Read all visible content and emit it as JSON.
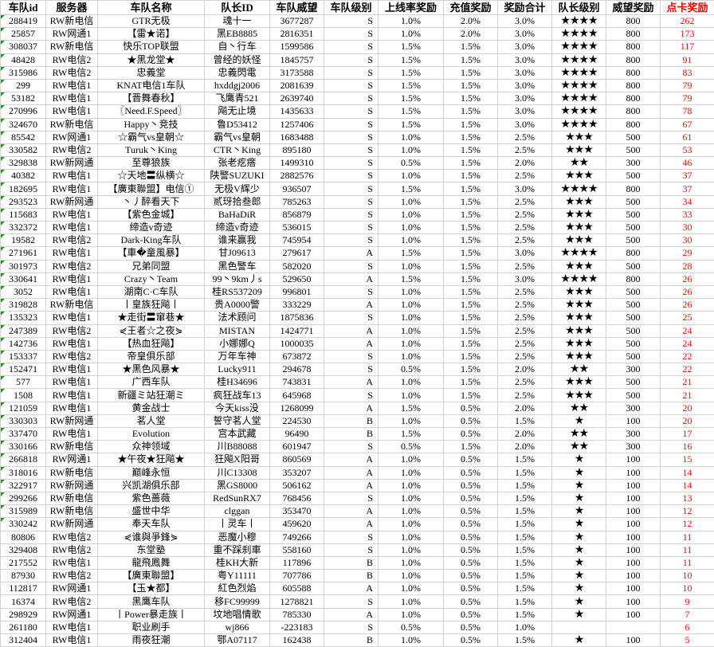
{
  "headers": [
    "车队id",
    "服务器",
    "车队名称",
    "队长ID",
    "车队威望",
    "车队级别",
    "上线率奖励",
    "充值奖励",
    "奖励合计",
    "队长级别",
    "威望奖励",
    "点卡奖励"
  ],
  "colors": {
    "highlight": "#ff0000",
    "comment_marker": "#1a9a1a",
    "grid": "#d4d4d4"
  },
  "star_icon": "★",
  "rows": [
    [
      "288419",
      "RW新电信",
      "GTR无极",
      "魂十一",
      "3677287",
      "S",
      "1.0%",
      "2.0%",
      "3.0%",
      4,
      "800",
      "262",
      true
    ],
    [
      "25857",
      "RW网通1",
      "【雷★诺】",
      "黑EB8885",
      "2816351",
      "S",
      "1.0%",
      "2.0%",
      "3.0%",
      4,
      "800",
      "173",
      true
    ],
    [
      "308037",
      "RW新电信",
      "快乐TOP联盟",
      "自丶行车",
      "1599586",
      "S",
      "1.5%",
      "1.5%",
      "3.0%",
      4,
      "800",
      "117",
      true
    ],
    [
      "48428",
      "RW电信2",
      "★黑龙堂★",
      "曾经的妖怪",
      "1845757",
      "S",
      "1.5%",
      "1.5%",
      "3.0%",
      4,
      "800",
      "91",
      true
    ],
    [
      "315986",
      "RW电信2",
      "忠義堂",
      "忠義閃電",
      "3173588",
      "S",
      "1.5%",
      "1.5%",
      "3.0%",
      4,
      "800",
      "83",
      true
    ],
    [
      "299",
      "RW电信1",
      "KNAT电信1车队",
      "hxddgj2006",
      "2081639",
      "S",
      "1.5%",
      "1.5%",
      "3.0%",
      4,
      "800",
      "79",
      true
    ],
    [
      "53182",
      "RW电信1",
      "【晋舞春秋】",
      "飞鹰青521",
      "2639740",
      "S",
      "1.5%",
      "1.5%",
      "3.0%",
      4,
      "800",
      "79",
      true
    ],
    [
      "270996",
      "RW电信1",
      "〖Need.F.Speed〗",
      "飚无止境",
      "1435633",
      "S",
      "1.5%",
      "1.5%",
      "3.0%",
      4,
      "800",
      "78",
      true
    ],
    [
      "324670",
      "RW新电信",
      "Happy丶竞技",
      "鲁D53412",
      "1257406",
      "S",
      "1.5%",
      "1.5%",
      "3.0%",
      4,
      "800",
      "67",
      true
    ],
    [
      "85542",
      "RW网通1",
      "☆霸气vs皇朝☆",
      "霸气vs皇朝",
      "1683488",
      "S",
      "1.0%",
      "1.5%",
      "2.5%",
      3,
      "500",
      "61",
      true
    ],
    [
      "330582",
      "RW电信2",
      "Turuk丶King",
      "CTR丶King",
      "895180",
      "S",
      "1.0%",
      "1.5%",
      "2.5%",
      3,
      "500",
      "53",
      true
    ],
    [
      "329838",
      "RW新网通",
      "至尊狼族",
      "张老疙瘩",
      "1499310",
      "S",
      "0.5%",
      "1.5%",
      "2.0%",
      2,
      "300",
      "46",
      true
    ],
    [
      "40382",
      "RW电信1",
      "☆天地〓纵横☆",
      "陕警SUZUKI",
      "2882576",
      "S",
      "1.0%",
      "1.5%",
      "2.5%",
      3,
      "500",
      "37",
      true
    ],
    [
      "182695",
      "RW电信1",
      "【廣東聯盟】电信①",
      "无极V辉少",
      "936507",
      "S",
      "1.5%",
      "1.5%",
      "3.0%",
      4,
      "800",
      "37",
      true
    ],
    [
      "293523",
      "RW新网通",
      "丶丿醉看天下",
      "贰玡拾叁郎",
      "785263",
      "S",
      "1.0%",
      "1.5%",
      "2.5%",
      3,
      "500",
      "34",
      true
    ],
    [
      "115683",
      "RW电信1",
      "【紫色金城】",
      "BaHaDiR",
      "856879",
      "S",
      "1.0%",
      "1.5%",
      "2.5%",
      3,
      "500",
      "33",
      true
    ],
    [
      "332372",
      "RW电信1",
      "缔造v奇迹",
      "缔造v奇迹",
      "536015",
      "S",
      "1.0%",
      "1.5%",
      "2.5%",
      3,
      "500",
      "30",
      true
    ],
    [
      "19582",
      "RW电信2",
      "Dark-King车队",
      "谁来赢我",
      "745954",
      "S",
      "1.0%",
      "1.5%",
      "2.5%",
      3,
      "500",
      "30",
      true
    ],
    [
      "271961",
      "RW电信1",
      "【車�童風暴】",
      "甘J09613",
      "279617",
      "A",
      "1.5%",
      "1.5%",
      "3.0%",
      4,
      "800",
      "29",
      true
    ],
    [
      "301973",
      "RW电信2",
      "兄弟同盟",
      "黑色警车",
      "582020",
      "S",
      "1.0%",
      "1.5%",
      "2.5%",
      3,
      "500",
      "28",
      true
    ],
    [
      "330641",
      "RW电信1",
      "Crazy丶Team",
      "99丶9km丿s",
      "529650",
      "A",
      "1.5%",
      "1.5%",
      "3.0%",
      4,
      "800",
      "26",
      true
    ],
    [
      "3052",
      "RW电信1",
      "湖南C·C车队",
      "桂RS537209",
      "996801",
      "S",
      "1.0%",
      "1.5%",
      "2.5%",
      3,
      "500",
      "26",
      true
    ],
    [
      "319828",
      "RW新电信",
      "丨皇族狂飚丨",
      "贵A0000警",
      "333229",
      "A",
      "1.0%",
      "1.5%",
      "2.5%",
      3,
      "500",
      "26",
      true
    ],
    [
      "135323",
      "RW电信1",
      "★走街〓窜巷★",
      "法术顾问",
      "1875836",
      "S",
      "1.0%",
      "1.5%",
      "2.5%",
      3,
      "500",
      "25",
      true
    ],
    [
      "247389",
      "RW电信2",
      "⋞王者☆之夜⋟",
      "MISTAN",
      "1424771",
      "A",
      "1.0%",
      "1.5%",
      "2.5%",
      3,
      "500",
      "24",
      true
    ],
    [
      "142736",
      "RW电信1",
      "【热血狂飚】",
      "小娜娜Q",
      "1000035",
      "A",
      "1.0%",
      "1.5%",
      "2.5%",
      3,
      "500",
      "24",
      true
    ],
    [
      "153337",
      "RW电信2",
      "帝皇俱乐部",
      "万年车神",
      "673872",
      "S",
      "1.0%",
      "1.5%",
      "2.5%",
      3,
      "500",
      "22",
      true
    ],
    [
      "152471",
      "RW电信1",
      "★黑色风暴★",
      "Lucky911",
      "294678",
      "S",
      "0.5%",
      "1.5%",
      "2.0%",
      2,
      "300",
      "22",
      true
    ],
    [
      "577",
      "RW电信1",
      "广西车队",
      "桂H34696",
      "743831",
      "A",
      "1.0%",
      "1.5%",
      "2.5%",
      3,
      "500",
      "21",
      true
    ],
    [
      "1508",
      "RW电信1",
      "新疆ミ站狂潮ミ",
      "疯狂战车13",
      "645968",
      "S",
      "1.0%",
      "1.5%",
      "2.5%",
      3,
      "500",
      "21",
      true
    ],
    [
      "121059",
      "RW电信1",
      "黄金战士",
      "今天kiss没",
      "1268099",
      "A",
      "1.5%",
      "0.5%",
      "2.0%",
      2,
      "300",
      "20",
      true
    ],
    [
      "330303",
      "RW新网通",
      "茗人堂",
      "誓守茗人堂",
      "224530",
      "B",
      "1.0%",
      "0.5%",
      "1.5%",
      1,
      "100",
      "20",
      true
    ],
    [
      "337470",
      "RW电信1",
      "Evolution",
      "宫本武藏",
      "96490",
      "B",
      "1.5%",
      "0.5%",
      "2.0%",
      2,
      "300",
      "17",
      true
    ],
    [
      "330166",
      "RW新电信",
      "众神领域",
      "川B88088",
      "601947",
      "S",
      "0.5%",
      "1.5%",
      "2.0%",
      2,
      "300",
      "16",
      true
    ],
    [
      "266818",
      "RW网通1",
      "★午夜★狂飚★",
      "狂飚X阳哥",
      "860569",
      "A",
      "1.0%",
      "0.5%",
      "1.5%",
      1,
      "100",
      "15",
      true
    ],
    [
      "318016",
      "RW新电信",
      "巅峰永恒",
      "川C13308",
      "353207",
      "A",
      "1.0%",
      "0.5%",
      "1.5%",
      1,
      "100",
      "14",
      true
    ],
    [
      "322917",
      "RW新网通",
      "兴凯湖俱乐部",
      "黑GS8000",
      "506162",
      "A",
      "1.0%",
      "0.5%",
      "1.5%",
      1,
      "100",
      "14",
      true
    ],
    [
      "299266",
      "RW新电信",
      "紫色蔷薇",
      "RedSunRX7",
      "768456",
      "S",
      "1.0%",
      "0.5%",
      "1.5%",
      1,
      "100",
      "13",
      true
    ],
    [
      "315989",
      "RW新电信",
      "盛世中华",
      "clggan",
      "353470",
      "A",
      "1.0%",
      "0.5%",
      "1.5%",
      1,
      "100",
      "12",
      true
    ],
    [
      "330242",
      "RW新网通",
      "奉天车队",
      "丨灵车丨",
      "459620",
      "A",
      "1.0%",
      "0.5%",
      "1.5%",
      1,
      "100",
      "12",
      true
    ],
    [
      "80806",
      "RW电信2",
      "⋞谁與爭鋒⋟",
      "恶魔小穆",
      "749266",
      "S",
      "1.0%",
      "0.5%",
      "1.5%",
      1,
      "100",
      "11",
      false
    ],
    [
      "329408",
      "RW电信2",
      "东堂塾",
      "重不踩刹車",
      "558160",
      "S",
      "1.0%",
      "0.5%",
      "1.5%",
      1,
      "100",
      "11",
      false
    ],
    [
      "217552",
      "RW电信1",
      "龍飛鳳舞",
      "桂KH大新",
      "117896",
      "B",
      "1.0%",
      "0.5%",
      "1.5%",
      1,
      "100",
      "11",
      false
    ],
    [
      "87930",
      "RW电信2",
      "【廣東聯盟】",
      "粤Y11111",
      "707786",
      "B",
      "1.0%",
      "0.5%",
      "1.5%",
      1,
      "100",
      "10",
      false
    ],
    [
      "112817",
      "RW网通1",
      "【玉★都】",
      "紅色烈焰",
      "605588",
      "A",
      "1.0%",
      "0.5%",
      "1.5%",
      1,
      "100",
      "10",
      false
    ],
    [
      "16374",
      "RW电信2",
      "黑鹰车队",
      "移FC99999",
      "1278821",
      "S",
      "1.0%",
      "0.5%",
      "1.5%",
      1,
      "100",
      "9",
      false
    ],
    [
      "298929",
      "RW网通1",
      "丨Power暴走族丨",
      "坟地唱情歌",
      "785330",
      "A",
      "1.0%",
      "0.5%",
      "1.5%",
      1,
      "100",
      "7",
      false
    ],
    [
      "261180",
      "RW电信1",
      "职业刷手",
      "wj866",
      "-223183",
      "S",
      "0.5%",
      "0.5%",
      "1.0%",
      0,
      "",
      "6",
      false
    ],
    [
      "312404",
      "RW电信1",
      "雨夜狂潮",
      "鄂A07117",
      "162438",
      "B",
      "1.0%",
      "0.5%",
      "1.5%",
      1,
      "100",
      "5",
      false
    ]
  ]
}
